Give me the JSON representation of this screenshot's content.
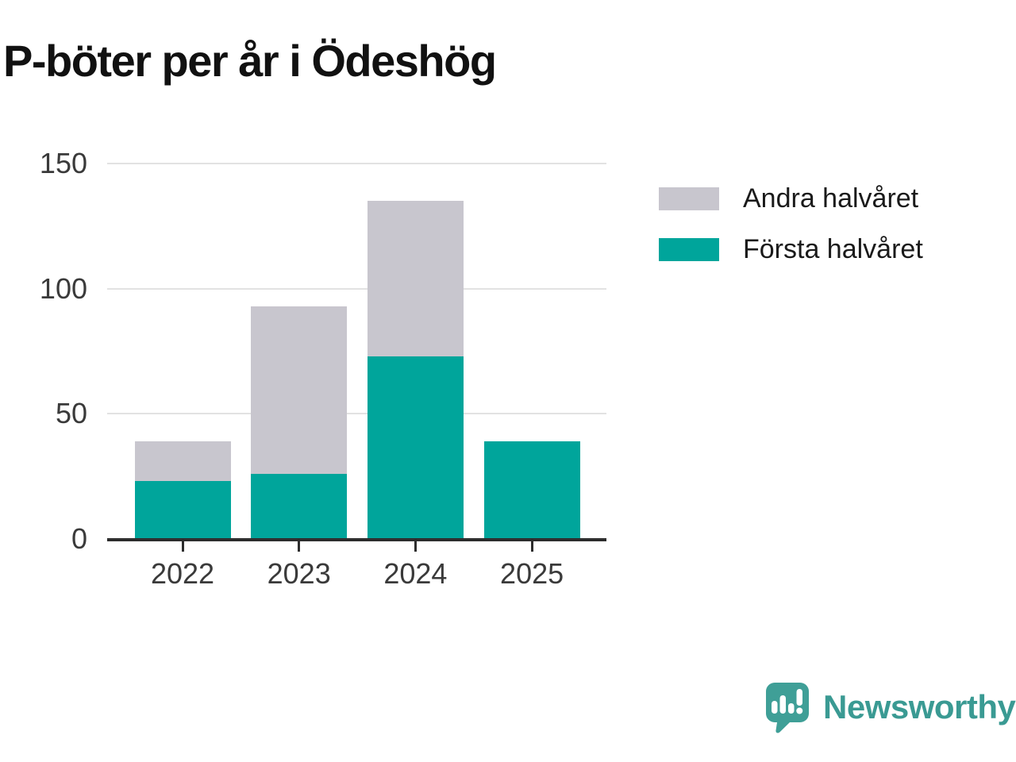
{
  "chart_data": {
    "type": "bar",
    "stacked": true,
    "title": "P-böter per år i Ödeshög",
    "categories": [
      "2022",
      "2023",
      "2024",
      "2025"
    ],
    "series": [
      {
        "name": "Första halvåret",
        "color": "#00a59b",
        "values": [
          23,
          26,
          73,
          39
        ]
      },
      {
        "name": "Andra halvåret",
        "color": "#c8c6ce",
        "values": [
          16,
          67,
          62,
          0
        ]
      }
    ],
    "totals": [
      39,
      93,
      135,
      39
    ],
    "xlabel": "",
    "ylabel": "",
    "ylim": [
      0,
      150
    ],
    "yticks": [
      0,
      50,
      100,
      150
    ],
    "grid": true,
    "legend_position": "top-right",
    "legend_order": [
      "Andra halvåret",
      "Första halvåret"
    ]
  },
  "colors": {
    "first_half": "#00a59b",
    "second_half": "#c8c6ce",
    "gridline": "#e2e2e2",
    "axis": "#2d2d2d",
    "brand_icon": "#3f9f97",
    "brand_text": "#3a9a93"
  },
  "branding": {
    "logo_text": "Newsworthy"
  }
}
